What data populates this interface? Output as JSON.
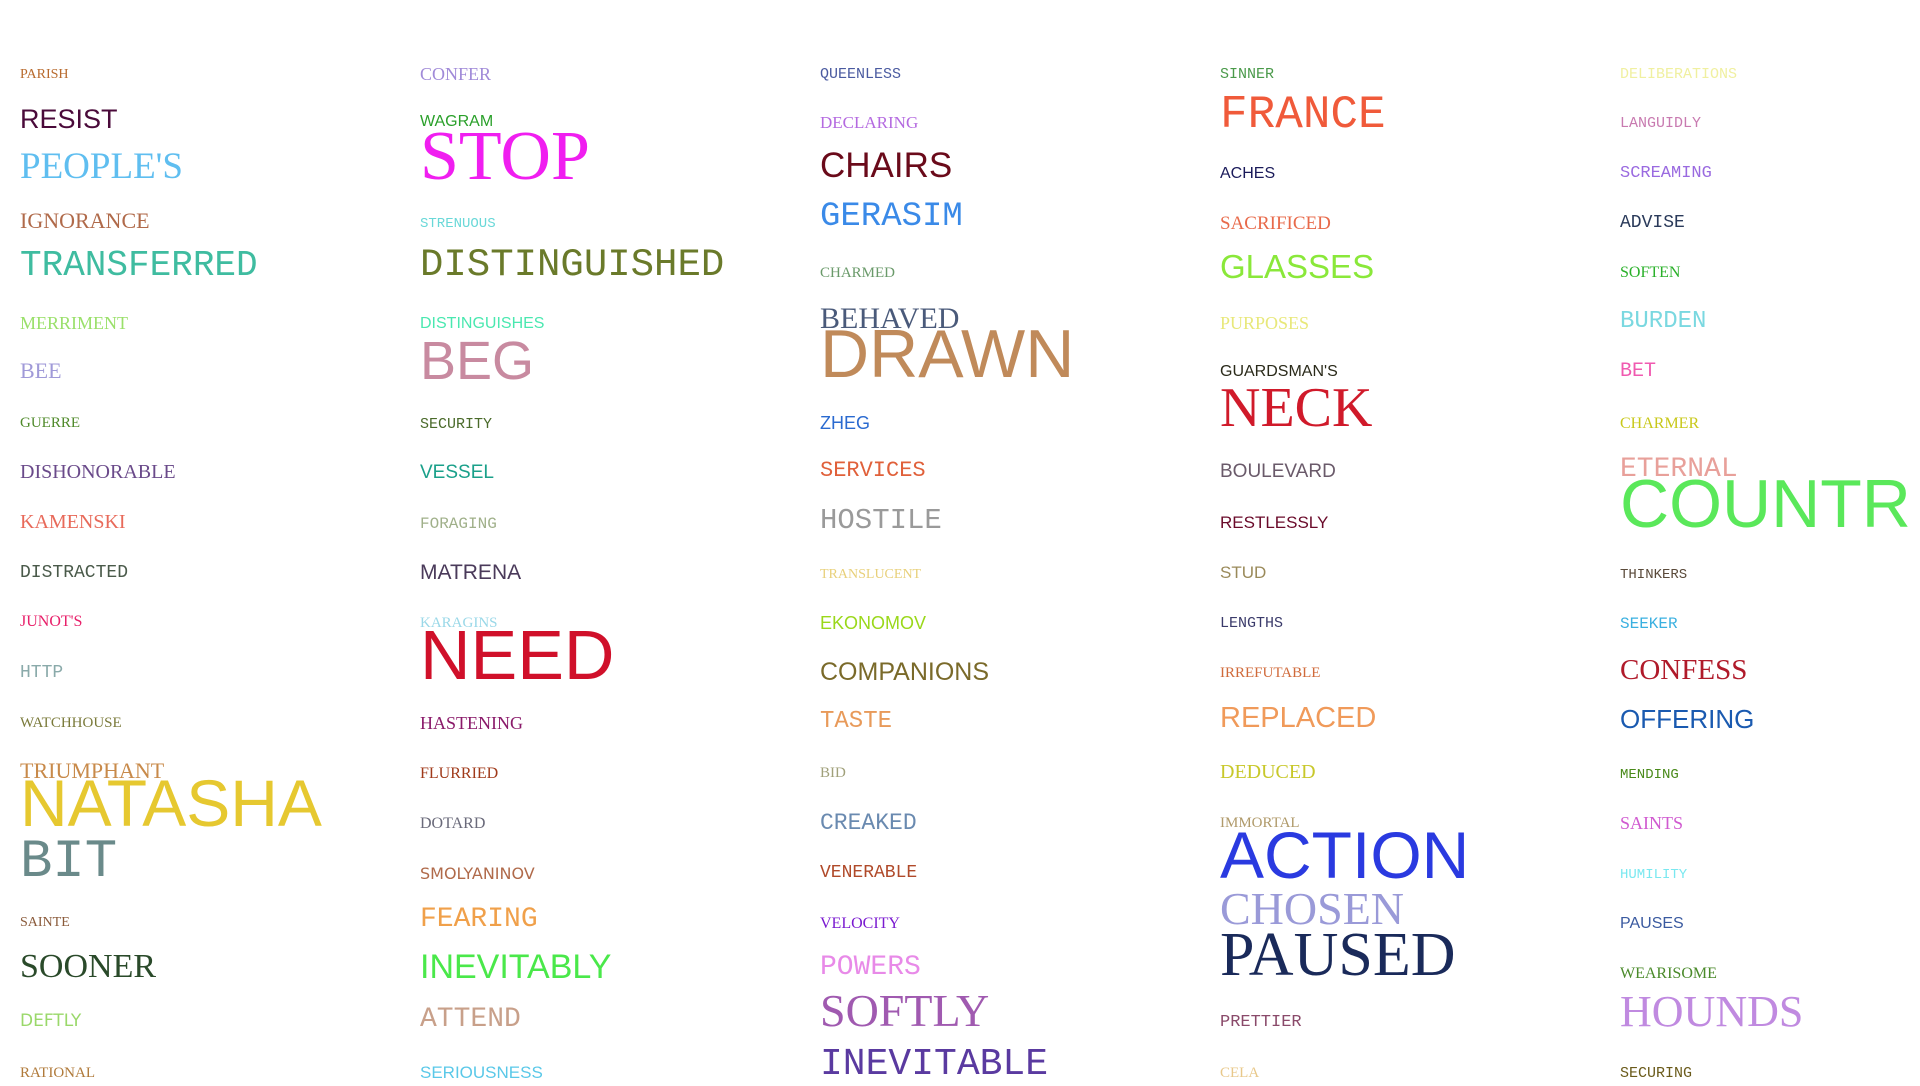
{
  "columns": [
    {
      "words": [
        {
          "text": "PARISH",
          "color": "#b86a2d"
        },
        {
          "text": "RESIST",
          "color": "#4a0a3a"
        },
        {
          "text": "PEOPLE'S",
          "color": "#5fbef0"
        },
        {
          "text": "IGNORANCE",
          "color": "#b06a4a"
        },
        {
          "text": "TRANSFERRED",
          "color": "#3fbca0"
        },
        {
          "text": "MERRIMENT",
          "color": "#9ae06a"
        },
        {
          "text": "BEE",
          "color": "#a09ad8"
        },
        {
          "text": "GUERRE",
          "color": "#4f8a2a"
        },
        {
          "text": "DISHONORABLE",
          "color": "#6a4a8a"
        },
        {
          "text": "KAMENSKI",
          "color": "#e86a5a"
        },
        {
          "text": "DISTRACTED",
          "color": "#4a5a4a"
        },
        {
          "text": "JUNOT'S",
          "color": "#e8206a"
        },
        {
          "text": "HTTP",
          "color": "#8aaaaa"
        },
        {
          "text": "WATCHHOUSE",
          "color": "#7a7a3a"
        },
        {
          "text": "TRIUMPHANT",
          "color": "#c88a4a"
        },
        {
          "text": "NATASHA",
          "color": "#e6c830"
        },
        {
          "text": "BIT",
          "color": "#6a8a8a"
        },
        {
          "text": "SAINTE",
          "color": "#8a5a3a"
        },
        {
          "text": "SOONER",
          "color": "#2a4a2a"
        },
        {
          "text": "DEFTLY",
          "color": "#9ad86a"
        },
        {
          "text": "RATIONAL",
          "color": "#b07a3a"
        }
      ]
    },
    {
      "words": [
        {
          "text": "CONFER",
          "color": "#a08ad8"
        },
        {
          "text": "WAGRAM",
          "color": "#2aa02a"
        },
        {
          "text": "STOP",
          "color": "#f01ef0"
        },
        {
          "text": "STRENUOUS",
          "color": "#6ad8d8"
        },
        {
          "text": "DISTINGUISHED",
          "color": "#6a7a2a"
        },
        {
          "text": "DISTINGUISHES",
          "color": "#4ae8b0"
        },
        {
          "text": "BEG",
          "color": "#c88aa0"
        },
        {
          "text": "SECURITY",
          "color": "#4a6a2a"
        },
        {
          "text": "VESSEL",
          "color": "#1aa08a"
        },
        {
          "text": "FORAGING",
          "color": "#a0b08a"
        },
        {
          "text": "MATRENA",
          "color": "#4a3a5a"
        },
        {
          "text": "KARAGINS",
          "color": "#9ad8e8"
        },
        {
          "text": "NEED",
          "color": "#d0102a"
        },
        {
          "text": "HASTENING",
          "color": "#8a1a6a"
        },
        {
          "text": "FLURRIED",
          "color": "#a03a1a"
        },
        {
          "text": "DOTARD",
          "color": "#6a6a7a"
        },
        {
          "text": "SMOLYANINOV",
          "color": "#b06a4a"
        },
        {
          "text": "FEARING",
          "color": "#f0a04a"
        },
        {
          "text": "INEVITABLY",
          "color": "#4ae84a"
        },
        {
          "text": "ATTEND",
          "color": "#c8a08a"
        },
        {
          "text": "SERIOUSNESS",
          "color": "#5ac8e8"
        }
      ]
    },
    {
      "words": [
        {
          "text": "QUEENLESS",
          "color": "#4a5aa0"
        },
        {
          "text": "DECLARING",
          "color": "#b46ae0"
        },
        {
          "text": "CHAIRS",
          "color": "#6a0a1a"
        },
        {
          "text": "GERASIM",
          "color": "#3a8ae8"
        },
        {
          "text": "CHARMED",
          "color": "#6a9a6a"
        },
        {
          "text": "BEHAVED",
          "color": "#4a5a7a"
        },
        {
          "text": "DRAWN",
          "color": "#c08a5a"
        },
        {
          "text": "ZHEG",
          "color": "#2a6ad0"
        },
        {
          "text": "SERVICES",
          "color": "#e0603a"
        },
        {
          "text": "HOSTILE",
          "color": "#9a9a9a"
        },
        {
          "text": "TRANSLUCENT",
          "color": "#e8d07a"
        },
        {
          "text": "EKONOMOV",
          "color": "#9ad81a"
        },
        {
          "text": "COMPANIONS",
          "color": "#7a6a2a"
        },
        {
          "text": "TASTE",
          "color": "#e89a5a"
        },
        {
          "text": "BID",
          "color": "#a0a07a"
        },
        {
          "text": "CREAKED",
          "color": "#6a8ab0"
        },
        {
          "text": "VENERABLE",
          "color": "#b04a2a"
        },
        {
          "text": "VELOCITY",
          "color": "#7a1ad0"
        },
        {
          "text": "POWERS",
          "color": "#e88ae8"
        },
        {
          "text": "SOFTLY",
          "color": "#a05ab0"
        },
        {
          "text": "INEVITABLE",
          "color": "#5a3aa0"
        }
      ]
    },
    {
      "words": [
        {
          "text": "SINNER",
          "color": "#4a9a4a"
        },
        {
          "text": "FRANCE",
          "color": "#f05a3a"
        },
        {
          "text": "ACHES",
          "color": "#1a1a5a"
        },
        {
          "text": "SACRIFICED",
          "color": "#e86a4a"
        },
        {
          "text": "GLASSES",
          "color": "#8ae83a"
        },
        {
          "text": "PURPOSES",
          "color": "#e8e87a"
        },
        {
          "text": "GUARDSMAN'S",
          "color": "#2a2a1a"
        },
        {
          "text": "NECK",
          "color": "#d01a2a"
        },
        {
          "text": "BOULEVARD",
          "color": "#6a5a6a"
        },
        {
          "text": "RESTLESSLY",
          "color": "#6a0a2a"
        },
        {
          "text": "STUD",
          "color": "#9a8a5a"
        },
        {
          "text": "LENGTHS",
          "color": "#3a3a6a"
        },
        {
          "text": "IRREFUTABLE",
          "color": "#d06a3a"
        },
        {
          "text": "REPLACED",
          "color": "#f09a5a"
        },
        {
          "text": "DEDUCED",
          "color": "#c8c82a"
        },
        {
          "text": "IMMORTAL",
          "color": "#b09a6a"
        },
        {
          "text": "ACTION",
          "color": "#2a3ae0"
        },
        {
          "text": "CHOSEN",
          "color": "#9a9ad8"
        },
        {
          "text": "PAUSED",
          "color": "#1a2a5a"
        },
        {
          "text": "PRETTIER",
          "color": "#8a4a6a"
        },
        {
          "text": "CELA",
          "color": "#e8c88a"
        }
      ]
    },
    {
      "words": [
        {
          "text": "DELIBERATIONS",
          "color": "#f0f0a0"
        },
        {
          "text": "LANGUIDLY",
          "color": "#c87ab0"
        },
        {
          "text": "SCREAMING",
          "color": "#9a6ae0"
        },
        {
          "text": "ADVISE",
          "color": "#2a3a5a"
        },
        {
          "text": "SOFTEN",
          "color": "#2ab02a"
        },
        {
          "text": "BURDEN",
          "color": "#7ad8e0"
        },
        {
          "text": "BET",
          "color": "#f05ab0"
        },
        {
          "text": "CHARMER",
          "color": "#c8c81a"
        },
        {
          "text": "ETERNAL",
          "color": "#e8a09a"
        },
        {
          "text": "COUNTR",
          "color": "#5ae85a"
        },
        {
          "text": "THINKERS",
          "color": "#5a4a3a"
        },
        {
          "text": "SEEKER",
          "color": "#3ab0e0"
        },
        {
          "text": "CONFESS",
          "color": "#b01a2a"
        },
        {
          "text": "OFFERING",
          "color": "#1a5ab0"
        },
        {
          "text": "MENDING",
          "color": "#4a8a1a"
        },
        {
          "text": "SAINTS",
          "color": "#d05ad0"
        },
        {
          "text": "HUMILITY",
          "color": "#7ae8f0"
        },
        {
          "text": "PAUSES",
          "color": "#3a5aa0"
        },
        {
          "text": "WEARISOME",
          "color": "#4a8a2a"
        },
        {
          "text": "HOUNDS",
          "color": "#c08ae0"
        },
        {
          "text": "SECURING",
          "color": "#6a5a1a"
        }
      ]
    }
  ]
}
